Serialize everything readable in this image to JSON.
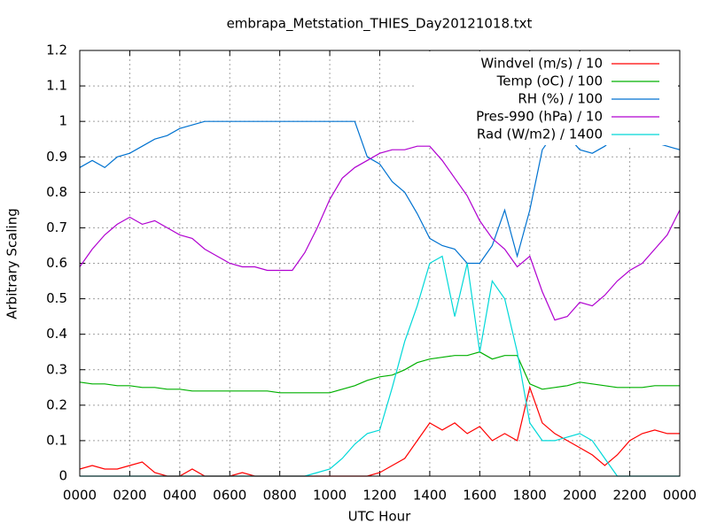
{
  "chart_data": {
    "type": "line",
    "title": "embrapa_Metstation_THIES_Day20121018.txt",
    "x_label": "UTC Hour",
    "y_label": "Arbitrary Scaling",
    "xlim": [
      0,
      24
    ],
    "xticks": [
      {
        "value": 0,
        "label": "0000"
      },
      {
        "value": 2,
        "label": "0200"
      },
      {
        "value": 4,
        "label": "0400"
      },
      {
        "value": 6,
        "label": "0600"
      },
      {
        "value": 8,
        "label": "0800"
      },
      {
        "value": 10,
        "label": "1000"
      },
      {
        "value": 12,
        "label": "1200"
      },
      {
        "value": 14,
        "label": "1400"
      },
      {
        "value": 16,
        "label": "1600"
      },
      {
        "value": 18,
        "label": "1800"
      },
      {
        "value": 20,
        "label": "2000"
      },
      {
        "value": 22,
        "label": "2200"
      },
      {
        "value": 24,
        "label": "0000"
      }
    ],
    "ylim": [
      0,
      1.2
    ],
    "yticks": [
      0,
      0.1,
      0.2,
      0.3,
      0.4,
      0.5,
      0.6,
      0.7,
      0.8,
      0.9,
      1,
      1.1,
      1.2
    ],
    "grid": true,
    "legend": "top-right",
    "x": [
      0,
      0.5,
      1,
      1.5,
      2,
      2.5,
      3,
      3.5,
      4,
      4.5,
      5,
      5.5,
      6,
      6.5,
      7,
      7.5,
      8,
      8.5,
      9,
      9.5,
      10,
      10.5,
      11,
      11.5,
      12,
      12.5,
      13,
      13.5,
      14,
      14.5,
      15,
      15.5,
      16,
      16.5,
      17,
      17.5,
      18,
      18.5,
      19,
      19.5,
      20,
      20.5,
      21,
      21.5,
      22,
      22.5,
      23,
      23.5,
      24
    ],
    "series": [
      {
        "name": "Windvel (m/s) / 10",
        "color": "#ff0000",
        "values": [
          0.02,
          0.03,
          0.02,
          0.02,
          0.03,
          0.04,
          0.01,
          0,
          0,
          0.02,
          0,
          0,
          0,
          0.01,
          0,
          0,
          0,
          0,
          0,
          0,
          0,
          0,
          0,
          0,
          0.01,
          0.03,
          0.05,
          0.1,
          0.15,
          0.13,
          0.15,
          0.12,
          0.14,
          0.1,
          0.12,
          0.1,
          0.25,
          0.15,
          0.12,
          0.1,
          0.08,
          0.06,
          0.03,
          0.06,
          0.1,
          0.12,
          0.13,
          0.12,
          0.12
        ]
      },
      {
        "name": "Temp (oC) / 100",
        "color": "#00b000",
        "values": [
          0.265,
          0.26,
          0.26,
          0.255,
          0.255,
          0.25,
          0.25,
          0.245,
          0.245,
          0.24,
          0.24,
          0.24,
          0.24,
          0.24,
          0.24,
          0.24,
          0.235,
          0.235,
          0.235,
          0.235,
          0.235,
          0.245,
          0.255,
          0.27,
          0.28,
          0.285,
          0.3,
          0.32,
          0.33,
          0.335,
          0.34,
          0.34,
          0.35,
          0.33,
          0.34,
          0.34,
          0.26,
          0.245,
          0.25,
          0.255,
          0.265,
          0.26,
          0.255,
          0.25,
          0.25,
          0.25,
          0.255,
          0.255,
          0.255
        ]
      },
      {
        "name": "RH (%) / 100",
        "color": "#0072d0",
        "values": [
          0.87,
          0.89,
          0.87,
          0.9,
          0.91,
          0.93,
          0.95,
          0.96,
          0.98,
          0.99,
          1,
          1,
          1,
          1,
          1,
          1,
          1,
          1,
          1,
          1,
          1,
          1,
          1,
          0.9,
          0.88,
          0.83,
          0.8,
          0.74,
          0.67,
          0.65,
          0.64,
          0.6,
          0.6,
          0.65,
          0.75,
          0.62,
          0.75,
          0.92,
          0.97,
          0.96,
          0.92,
          0.91,
          0.93,
          0.96,
          0.99,
          0.96,
          0.94,
          0.93,
          0.92
        ]
      },
      {
        "name": "Pres-990 (hPa) / 10",
        "color": "#b000d0",
        "values": [
          0.59,
          0.64,
          0.68,
          0.71,
          0.73,
          0.71,
          0.72,
          0.7,
          0.68,
          0.67,
          0.64,
          0.62,
          0.6,
          0.59,
          0.59,
          0.58,
          0.58,
          0.58,
          0.63,
          0.7,
          0.78,
          0.84,
          0.87,
          0.89,
          0.91,
          0.92,
          0.92,
          0.93,
          0.93,
          0.89,
          0.84,
          0.79,
          0.72,
          0.67,
          0.64,
          0.59,
          0.62,
          0.52,
          0.44,
          0.45,
          0.49,
          0.48,
          0.51,
          0.55,
          0.58,
          0.6,
          0.64,
          0.68,
          0.75
        ]
      },
      {
        "name": "Rad (W/m2) / 1400",
        "color": "#00d8d8",
        "values": [
          0,
          0,
          0,
          0,
          0,
          0,
          0,
          0,
          0,
          0,
          0,
          0,
          0,
          0,
          0,
          0,
          0,
          0,
          0,
          0.01,
          0.02,
          0.05,
          0.09,
          0.12,
          0.13,
          0.25,
          0.38,
          0.48,
          0.6,
          0.62,
          0.45,
          0.6,
          0.35,
          0.55,
          0.5,
          0.35,
          0.15,
          0.1,
          0.1,
          0.11,
          0.12,
          0.1,
          0.05,
          0,
          0,
          0,
          0,
          0,
          0
        ]
      }
    ]
  }
}
